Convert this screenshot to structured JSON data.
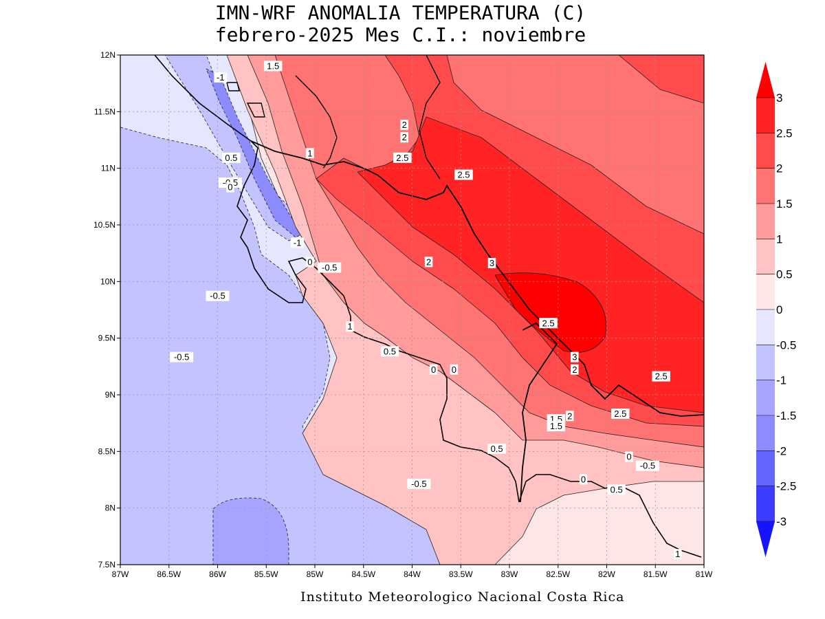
{
  "title_line1": "IMN-WRF  ANOMALIA TEMPERATURA (C)",
  "title_line2": "febrero-2025 Mes C.I.: noviembre",
  "credit": "Instituto Meteorologico Nacional Costa Rica",
  "map": {
    "lon_range": [
      -87,
      -81
    ],
    "lat_range": [
      7.5,
      12
    ],
    "lon_ticks": [
      "87W",
      "86.5W",
      "86W",
      "85.5W",
      "85W",
      "84.5W",
      "84W",
      "83.5W",
      "83W",
      "82.5W",
      "82W",
      "81.5W",
      "81W"
    ],
    "lat_ticks": [
      "7.5N",
      "8N",
      "8.5N",
      "9N",
      "9.5N",
      "10N",
      "10.5N",
      "11N",
      "11.5N",
      "12N"
    ],
    "grid": "dotted"
  },
  "colorbar": {
    "levels": [
      "-3",
      "-2.5",
      "-2",
      "-1.5",
      "-1",
      "-0.5",
      "0",
      "0.5",
      "1",
      "1.5",
      "2",
      "2.5",
      "3"
    ],
    "colors": [
      "#1414ff",
      "#3c3cff",
      "#6464ff",
      "#8c8cff",
      "#a5a5ff",
      "#c3c3ff",
      "#e6e6ff",
      "#ffe6e6",
      "#ffc3c3",
      "#ff9b9b",
      "#ff7373",
      "#ff4b4b",
      "#ff2323",
      "#ff0000"
    ]
  },
  "contour_labels": [
    {
      "text": "1.5",
      "lon": -85.43,
      "lat": 11.9
    },
    {
      "text": "-1",
      "lon": -85.97,
      "lat": 11.8
    },
    {
      "text": "2",
      "lon": -84.08,
      "lat": 11.38
    },
    {
      "text": "2",
      "lon": -84.08,
      "lat": 11.27
    },
    {
      "text": "1",
      "lon": -85.05,
      "lat": 11.13
    },
    {
      "text": "0.5",
      "lon": -85.86,
      "lat": 11.09
    },
    {
      "text": "2.5",
      "lon": -84.1,
      "lat": 11.09
    },
    {
      "text": "-0.5",
      "lon": -85.87,
      "lat": 10.87
    },
    {
      "text": "0",
      "lon": -85.87,
      "lat": 10.83
    },
    {
      "text": "2.5",
      "lon": -83.47,
      "lat": 10.94
    },
    {
      "text": "-1",
      "lon": -85.18,
      "lat": 10.34
    },
    {
      "text": "0",
      "lon": -85.05,
      "lat": 10.17
    },
    {
      "text": "-0.5",
      "lon": -84.85,
      "lat": 10.12
    },
    {
      "text": "2",
      "lon": -83.83,
      "lat": 10.17
    },
    {
      "text": "3",
      "lon": -83.18,
      "lat": 10.16
    },
    {
      "text": "-0.5",
      "lon": -86.0,
      "lat": 9.87
    },
    {
      "text": "1",
      "lon": -84.64,
      "lat": 9.6
    },
    {
      "text": "2.5",
      "lon": -82.6,
      "lat": 9.63
    },
    {
      "text": "-0.5",
      "lon": -86.37,
      "lat": 9.33
    },
    {
      "text": "0.5",
      "lon": -84.23,
      "lat": 9.38
    },
    {
      "text": "3",
      "lon": -82.33,
      "lat": 9.33
    },
    {
      "text": "2",
      "lon": -82.33,
      "lat": 9.22
    },
    {
      "text": "0",
      "lon": -83.78,
      "lat": 9.22
    },
    {
      "text": "0",
      "lon": -83.57,
      "lat": 9.22
    },
    {
      "text": "2.5",
      "lon": -81.44,
      "lat": 9.16
    },
    {
      "text": "2.5",
      "lon": -81.86,
      "lat": 8.83
    },
    {
      "text": "1.5",
      "lon": -82.52,
      "lat": 8.78
    },
    {
      "text": "2",
      "lon": -82.38,
      "lat": 8.81
    },
    {
      "text": "1.5",
      "lon": -82.52,
      "lat": 8.72
    },
    {
      "text": "0.5",
      "lon": -83.13,
      "lat": 8.52
    },
    {
      "text": "0",
      "lon": -81.77,
      "lat": 8.45
    },
    {
      "text": "-0.5",
      "lon": -81.58,
      "lat": 8.37
    },
    {
      "text": "0",
      "lon": -82.24,
      "lat": 8.25
    },
    {
      "text": "-0.5",
      "lon": -83.93,
      "lat": 8.21
    },
    {
      "text": "0.5",
      "lon": -81.9,
      "lat": 8.16
    },
    {
      "text": "1",
      "lon": -81.27,
      "lat": 7.59
    }
  ]
}
